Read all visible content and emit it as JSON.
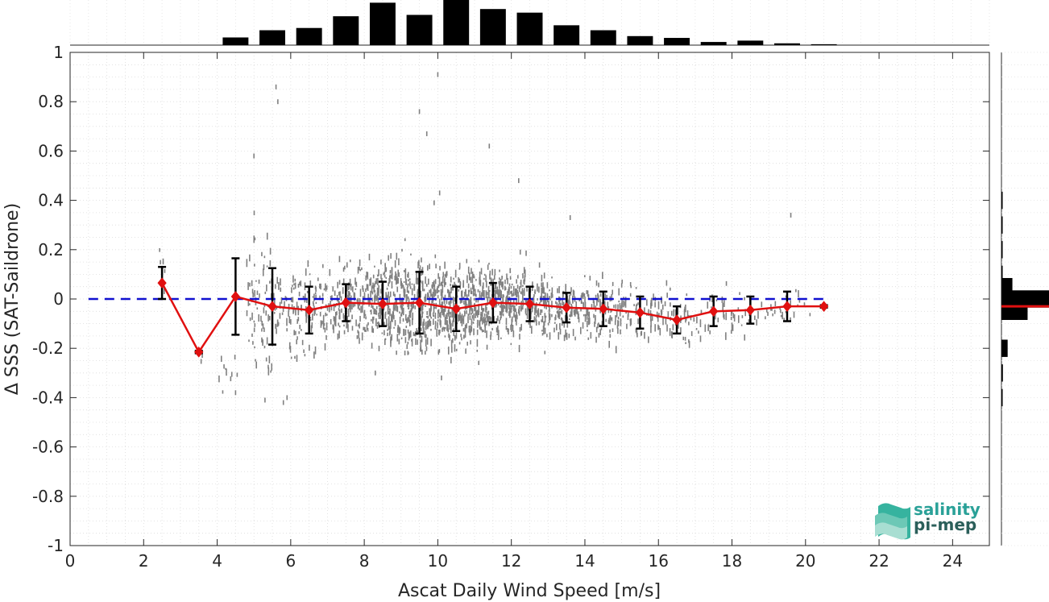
{
  "chart_data": {
    "type": "scatter",
    "xlabel": "Ascat Daily Wind Speed [m/s]",
    "ylabel": "Δ SSS (SAT-Saildrone)",
    "xlim": [
      0,
      25
    ],
    "ylim": [
      -1,
      1
    ],
    "x_ticks": [
      "0",
      "2",
      "4",
      "6",
      "8",
      "10",
      "12",
      "14",
      "16",
      "18",
      "20",
      "22",
      "24"
    ],
    "y_ticks": [
      "1",
      "0.8",
      "0.6",
      "0.4",
      "0.2",
      "0",
      "-0.2",
      "-0.4",
      "-0.6",
      "-0.8",
      "-1"
    ],
    "grid": "minor dotted",
    "reference_line": {
      "y": 0,
      "style": "dashed",
      "color": "#1010d0",
      "x_range": [
        0.5,
        20.5
      ]
    },
    "binned_mean": {
      "color": "#e01010",
      "x": [
        2.5,
        3.5,
        4.5,
        5.5,
        6.5,
        7.5,
        8.5,
        9.5,
        10.5,
        11.5,
        12.5,
        13.5,
        14.5,
        15.5,
        16.5,
        17.5,
        18.5,
        19.5,
        20.5
      ],
      "y": [
        0.065,
        -0.215,
        0.01,
        -0.03,
        -0.045,
        -0.015,
        -0.02,
        -0.015,
        -0.04,
        -0.015,
        -0.02,
        -0.035,
        -0.04,
        -0.055,
        -0.085,
        -0.05,
        -0.045,
        -0.03,
        -0.03
      ],
      "std": [
        0.065,
        0.005,
        0.155,
        0.155,
        0.095,
        0.075,
        0.09,
        0.125,
        0.09,
        0.08,
        0.07,
        0.06,
        0.07,
        0.065,
        0.055,
        0.06,
        0.055,
        0.06,
        0.005
      ]
    },
    "scatter": {
      "color": "#808080",
      "clusters": [
        {
          "x": [
            2.4,
            2.6
          ],
          "y_mean": 0.1,
          "y_sd": 0.05,
          "n": 5
        },
        {
          "x": [
            3.4,
            3.6
          ],
          "y_mean": -0.22,
          "y_sd": 0.02,
          "n": 4
        },
        {
          "x": [
            4.0,
            4.6
          ],
          "y_mean": -0.3,
          "y_sd": 0.05,
          "n": 10
        },
        {
          "x": [
            4.8,
            5.5
          ],
          "y_mean": -0.02,
          "y_sd": 0.15,
          "n": 70
        },
        {
          "x": [
            5.5,
            6.5
          ],
          "y_mean": -0.04,
          "y_sd": 0.09,
          "n": 90
        },
        {
          "x": [
            6.5,
            7.5
          ],
          "y_mean": -0.03,
          "y_sd": 0.08,
          "n": 110
        },
        {
          "x": [
            7.5,
            8.5
          ],
          "y_mean": -0.02,
          "y_sd": 0.08,
          "n": 170
        },
        {
          "x": [
            8.5,
            9.5
          ],
          "y_mean": -0.02,
          "y_sd": 0.09,
          "n": 220
        },
        {
          "x": [
            9.5,
            10.5
          ],
          "y_mean": -0.03,
          "y_sd": 0.09,
          "n": 260
        },
        {
          "x": [
            10.5,
            11.5
          ],
          "y_mean": -0.02,
          "y_sd": 0.08,
          "n": 230
        },
        {
          "x": [
            11.5,
            12.5
          ],
          "y_mean": -0.02,
          "y_sd": 0.07,
          "n": 200
        },
        {
          "x": [
            12.5,
            13.5
          ],
          "y_mean": -0.03,
          "y_sd": 0.06,
          "n": 140
        },
        {
          "x": [
            13.5,
            14.5
          ],
          "y_mean": -0.04,
          "y_sd": 0.06,
          "n": 110
        },
        {
          "x": [
            14.5,
            15.5
          ],
          "y_mean": -0.05,
          "y_sd": 0.06,
          "n": 80
        },
        {
          "x": [
            15.5,
            16.5
          ],
          "y_mean": -0.06,
          "y_sd": 0.05,
          "n": 60
        },
        {
          "x": [
            16.5,
            17.5
          ],
          "y_mean": -0.08,
          "y_sd": 0.05,
          "n": 40
        },
        {
          "x": [
            17.5,
            18.5
          ],
          "y_mean": -0.06,
          "y_sd": 0.05,
          "n": 30
        },
        {
          "x": [
            18.5,
            19.5
          ],
          "y_mean": -0.05,
          "y_sd": 0.04,
          "n": 20
        },
        {
          "x": [
            19.5,
            20.2
          ],
          "y_mean": -0.03,
          "y_sd": 0.03,
          "n": 10
        }
      ],
      "outliers": [
        {
          "x": 5.6,
          "y": 0.86
        },
        {
          "x": 5.65,
          "y": 0.8
        },
        {
          "x": 5.0,
          "y": 0.58
        },
        {
          "x": 10.0,
          "y": 0.91
        },
        {
          "x": 10.05,
          "y": 0.43
        },
        {
          "x": 9.9,
          "y": 0.39
        },
        {
          "x": 9.5,
          "y": 0.76
        },
        {
          "x": 9.7,
          "y": 0.67
        },
        {
          "x": 11.4,
          "y": 0.62
        },
        {
          "x": 13.6,
          "y": 0.33
        },
        {
          "x": 19.6,
          "y": 0.34
        },
        {
          "x": 5.3,
          "y": -0.41
        },
        {
          "x": 5.8,
          "y": -0.42
        },
        {
          "x": 5.9,
          "y": -0.4
        },
        {
          "x": 4.5,
          "y": -0.38
        },
        {
          "x": 8.3,
          "y": -0.3
        },
        {
          "x": 10.1,
          "y": -0.32
        },
        {
          "x": 12.2,
          "y": 0.48
        }
      ]
    },
    "top_histogram": {
      "bin_centers": [
        2.5,
        3.5,
        4.5,
        5.5,
        6.5,
        7.5,
        8.5,
        9.5,
        10.5,
        11.5,
        12.5,
        13.5,
        14.5,
        15.5,
        16.5,
        17.5,
        18.5,
        19.5,
        20.5
      ],
      "relative_counts": [
        0.0,
        0.0,
        0.17,
        0.33,
        0.38,
        0.64,
        0.94,
        0.67,
        1.0,
        0.8,
        0.72,
        0.44,
        0.33,
        0.2,
        0.16,
        0.07,
        0.1,
        0.04,
        0.02
      ]
    },
    "right_histogram": {
      "bin_centers": [
        0.4,
        0.3,
        0.2,
        0.1,
        0.05,
        0.0,
        -0.05,
        -0.1,
        -0.2,
        -0.3,
        -0.4
      ],
      "relative_counts": [
        0.01,
        0.01,
        0.02,
        0.02,
        0.23,
        1.0,
        0.55,
        0.0,
        0.13,
        0.03,
        0.02
      ],
      "mean_line": -0.03,
      "mean_line_color": "#e01010"
    }
  },
  "logo": {
    "line1": "salinity",
    "line2": "pi-mep",
    "color_teal": "#2aa198",
    "color_dark": "#2b5f5a"
  }
}
